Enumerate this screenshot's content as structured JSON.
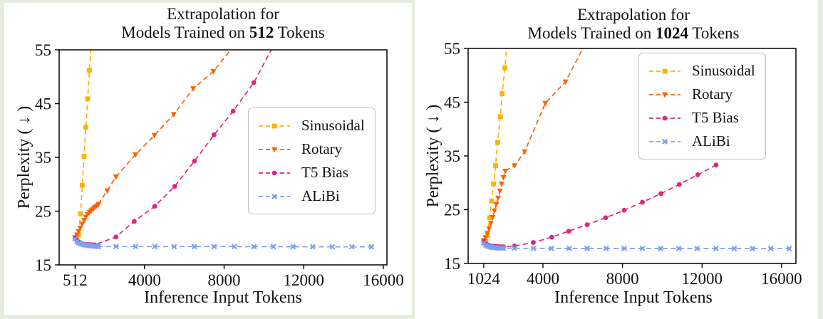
{
  "page": {
    "background_color": "#e6ecdf",
    "panel_color": "#ffffff",
    "accent_colors": {
      "sinusoidal": "#FFB000",
      "rotary": "#FE6100",
      "t5_bias": "#DC267F",
      "alibi": "#7F9FF3"
    }
  },
  "chart_data": [
    {
      "type": "line",
      "title_line1": "Extrapolation for",
      "title_line2_prefix": "Models Trained on ",
      "title_line2_bold": "512",
      "title_line2_suffix": " Tokens",
      "xlabel": "Inference Input Tokens",
      "ylabel": "Perplexity ( ↓ )",
      "xlim": [
        -290,
        16180
      ],
      "ylim": [
        15,
        55
      ],
      "grid": false,
      "legend_position": "center-right",
      "xticks": [
        {
          "value": 512,
          "label": "512"
        },
        {
          "value": 4000,
          "label": "4000"
        },
        {
          "value": 8000,
          "label": "8000"
        },
        {
          "value": 12000,
          "label": "12000"
        },
        {
          "value": 16000,
          "label": "16000"
        }
      ],
      "yticks": [
        {
          "value": 15,
          "label": "15"
        },
        {
          "value": 25,
          "label": "25"
        },
        {
          "value": 35,
          "label": "35"
        },
        {
          "value": 45,
          "label": "45"
        },
        {
          "value": 55,
          "label": "55"
        }
      ],
      "series": [
        {
          "name": "Sinusoidal",
          "color": "#FFB000",
          "marker": "square",
          "linestyle": "dashed",
          "points": [
            [
              512,
              20.05
            ],
            [
              602,
              19.9
            ],
            [
              692,
              20.6
            ],
            [
              782,
              24.5
            ],
            [
              872,
              29.8
            ],
            [
              962,
              35.2
            ],
            [
              1052,
              40.6
            ],
            [
              1142,
              45.9
            ],
            [
              1232,
              51.2
            ],
            [
              1330,
              56.8
            ]
          ]
        },
        {
          "name": "Rotary",
          "color": "#FE6100",
          "marker": "triangle-down",
          "linestyle": "dashed",
          "points": [
            [
              512,
              20.1
            ],
            [
              602,
              20.6
            ],
            [
              692,
              21.2
            ],
            [
              782,
              21.9
            ],
            [
              872,
              22.6
            ],
            [
              962,
              23.3
            ],
            [
              1052,
              23.9
            ],
            [
              1142,
              24.4
            ],
            [
              1232,
              24.8
            ],
            [
              1322,
              25.1
            ],
            [
              1412,
              25.4
            ],
            [
              1502,
              25.7
            ],
            [
              1592,
              26.0
            ],
            [
              1682,
              26.3
            ],
            [
              2124,
              28.8
            ],
            [
              2567,
              31.4
            ],
            [
              3545,
              35.5
            ],
            [
              4501,
              39.1
            ],
            [
              5469,
              43.0
            ],
            [
              6447,
              47.8
            ],
            [
              7460,
              51.0
            ],
            [
              8500,
              55.8
            ]
          ]
        },
        {
          "name": "T5 Bias",
          "color": "#DC267F",
          "marker": "circle",
          "linestyle": "dashed",
          "points": [
            [
              512,
              20.05
            ],
            [
              602,
              19.6
            ],
            [
              692,
              19.3
            ],
            [
              782,
              19.1
            ],
            [
              872,
              18.95
            ],
            [
              962,
              18.85
            ],
            [
              1052,
              18.8
            ],
            [
              1142,
              18.78
            ],
            [
              1232,
              18.75
            ],
            [
              1322,
              18.73
            ],
            [
              1412,
              18.72
            ],
            [
              1493,
              18.73
            ],
            [
              2567,
              20.2
            ],
            [
              3485,
              23.1
            ],
            [
              4512,
              25.9
            ],
            [
              5515,
              29.6
            ],
            [
              6507,
              34.3
            ],
            [
              7496,
              39.2
            ],
            [
              8453,
              43.6
            ],
            [
              9492,
              48.9
            ],
            [
              10450,
              55.6
            ]
          ]
        },
        {
          "name": "ALiBi",
          "color": "#7F9FF3",
          "marker": "x",
          "linestyle": "dashed",
          "points": [
            [
              512,
              19.8
            ],
            [
              602,
              19.35
            ],
            [
              692,
              19.1
            ],
            [
              782,
              18.95
            ],
            [
              872,
              18.85
            ],
            [
              962,
              18.75
            ],
            [
              1052,
              18.68
            ],
            [
              1142,
              18.62
            ],
            [
              1232,
              18.57
            ],
            [
              1322,
              18.53
            ],
            [
              1412,
              18.5
            ],
            [
              1502,
              18.47
            ],
            [
              1592,
              18.45
            ],
            [
              1682,
              18.43
            ],
            [
              2567,
              18.41
            ],
            [
              3556,
              18.4
            ],
            [
              4512,
              18.4
            ],
            [
              5490,
              18.4
            ],
            [
              6507,
              18.4
            ],
            [
              7496,
              18.4
            ],
            [
              8513,
              18.4
            ],
            [
              9500,
              18.39
            ],
            [
              10480,
              18.39
            ],
            [
              11465,
              18.38
            ],
            [
              12450,
              18.38
            ],
            [
              13435,
              18.37
            ],
            [
              14420,
              18.37
            ],
            [
              15405,
              18.36
            ]
          ]
        }
      ]
    },
    {
      "type": "line",
      "title_line1": "Extrapolation for",
      "title_line2_prefix": "Models Trained on ",
      "title_line2_bold": "1024",
      "title_line2_suffix": " Tokens",
      "xlabel": "Inference Input Tokens",
      "ylabel": "Perplexity ( ↓ )",
      "xlim": [
        240,
        16720
      ],
      "ylim": [
        15,
        55
      ],
      "grid": false,
      "legend_position": "top-right",
      "xticks": [
        {
          "value": 1024,
          "label": "1024"
        },
        {
          "value": 4000,
          "label": "4000"
        },
        {
          "value": 8000,
          "label": "8000"
        },
        {
          "value": 12000,
          "label": "12000"
        },
        {
          "value": 16000,
          "label": "16000"
        }
      ],
      "yticks": [
        {
          "value": 15,
          "label": "15"
        },
        {
          "value": 25,
          "label": "25"
        },
        {
          "value": 35,
          "label": "35"
        },
        {
          "value": 45,
          "label": "45"
        },
        {
          "value": 55,
          "label": "55"
        }
      ],
      "series": [
        {
          "name": "Sinusoidal",
          "color": "#FFB000",
          "marker": "square",
          "linestyle": "dashed",
          "points": [
            [
              1024,
              19.3
            ],
            [
              1120,
              19.1
            ],
            [
              1220,
              20.2
            ],
            [
              1320,
              23.5
            ],
            [
              1420,
              26.6
            ],
            [
              1520,
              29.8
            ],
            [
              1620,
              33.2
            ],
            [
              1720,
              37.5
            ],
            [
              1860,
              42.3
            ],
            [
              1950,
              46.6
            ],
            [
              2090,
              51.4
            ],
            [
              2200,
              56.2
            ]
          ]
        },
        {
          "name": "Rotary",
          "color": "#FE6100",
          "marker": "triangle-down",
          "linestyle": "dashed",
          "points": [
            [
              1024,
              19.2
            ],
            [
              1114,
              19.8
            ],
            [
              1204,
              20.6
            ],
            [
              1294,
              21.5
            ],
            [
              1384,
              22.5
            ],
            [
              1474,
              23.6
            ],
            [
              1564,
              24.8
            ],
            [
              1654,
              26.0
            ],
            [
              1744,
              27.2
            ],
            [
              1834,
              28.5
            ],
            [
              1924,
              29.8
            ],
            [
              2014,
              31.0
            ],
            [
              2104,
              32.2
            ],
            [
              2570,
              33.2
            ],
            [
              3081,
              35.8
            ],
            [
              4119,
              44.8
            ],
            [
              5133,
              48.8
            ],
            [
              6060,
              55.4
            ]
          ]
        },
        {
          "name": "T5 Bias",
          "color": "#DC267F",
          "marker": "circle",
          "linestyle": "dashed",
          "points": [
            [
              1024,
              19.1
            ],
            [
              1114,
              18.7
            ],
            [
              1204,
              18.5
            ],
            [
              1294,
              18.35
            ],
            [
              1384,
              18.25
            ],
            [
              1474,
              18.2
            ],
            [
              1564,
              18.17
            ],
            [
              1654,
              18.14
            ],
            [
              1744,
              18.12
            ],
            [
              1834,
              18.1
            ],
            [
              1924,
              18.1
            ],
            [
              2014,
              18.1
            ],
            [
              2580,
              18.25
            ],
            [
              3512,
              18.9
            ],
            [
              4442,
              19.9
            ],
            [
              5302,
              21.0
            ],
            [
              6222,
              22.2
            ],
            [
              7153,
              23.5
            ],
            [
              8085,
              24.9
            ],
            [
              9002,
              26.4
            ],
            [
              9933,
              28.0
            ],
            [
              10853,
              29.7
            ],
            [
              11785,
              31.5
            ],
            [
              12705,
              33.3
            ]
          ]
        },
        {
          "name": "ALiBi",
          "color": "#7F9FF3",
          "marker": "x",
          "linestyle": "dashed",
          "points": [
            [
              1024,
              18.8
            ],
            [
              1114,
              18.45
            ],
            [
              1204,
              18.25
            ],
            [
              1294,
              18.12
            ],
            [
              1384,
              18.03
            ],
            [
              1474,
              17.97
            ],
            [
              1564,
              17.93
            ],
            [
              1654,
              17.9
            ],
            [
              1744,
              17.88
            ],
            [
              1834,
              17.86
            ],
            [
              1924,
              17.85
            ],
            [
              2014,
              17.84
            ],
            [
              2554,
              17.82
            ],
            [
              3521,
              17.81
            ],
            [
              4431,
              17.8
            ],
            [
              5327,
              17.8
            ],
            [
              6222,
              17.8
            ],
            [
              7175,
              17.8
            ],
            [
              8085,
              17.79
            ],
            [
              9002,
              17.79
            ],
            [
              9922,
              17.78
            ],
            [
              10828,
              17.78
            ],
            [
              11749,
              17.78
            ],
            [
              12705,
              17.77
            ],
            [
              13622,
              17.77
            ],
            [
              14532,
              17.76
            ],
            [
              15450,
              17.76
            ],
            [
              16384,
              17.75
            ]
          ]
        }
      ]
    }
  ]
}
